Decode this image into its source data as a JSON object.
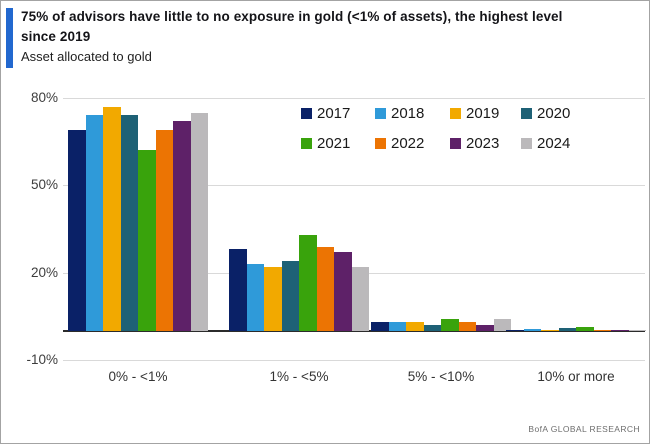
{
  "header": {
    "title": "75% of advisors have little to no exposure in gold (<1% of assets), the highest level since 2019",
    "subtitle": "Asset allocated to gold",
    "accent_color": "#2268cf"
  },
  "chart_data": {
    "type": "bar",
    "title": "Asset allocated to gold",
    "categories": [
      "0% - <1%",
      "1% - <5%",
      "5% - <10%",
      "10% or more"
    ],
    "series": [
      {
        "name": "2017",
        "color": "#0a2167",
        "values": [
          69,
          28,
          3,
          0.5
        ]
      },
      {
        "name": "2018",
        "color": "#2f9ad9",
        "values": [
          74,
          23,
          3,
          0.7
        ]
      },
      {
        "name": "2019",
        "color": "#f2a900",
        "values": [
          77,
          22,
          3,
          0.3
        ]
      },
      {
        "name": "2020",
        "color": "#1e6176",
        "values": [
          74,
          24,
          2,
          1
        ]
      },
      {
        "name": "2021",
        "color": "#39a30c",
        "values": [
          62,
          33,
          4,
          1.5
        ]
      },
      {
        "name": "2022",
        "color": "#ec7403",
        "values": [
          69,
          29,
          3,
          0.3
        ]
      },
      {
        "name": "2023",
        "color": "#5e2168",
        "values": [
          72,
          27,
          2,
          0.5
        ]
      },
      {
        "name": "2024",
        "color": "#bbb9bb",
        "values": [
          75,
          22,
          4,
          0.5
        ]
      }
    ],
    "ylabel": "",
    "xlabel": "",
    "ylim": [
      -10,
      80
    ],
    "y_ticks": [
      80,
      50,
      20,
      -10
    ],
    "y_tick_labels": [
      "80%",
      "50%",
      "20%",
      "-10%"
    ],
    "grid": "horizontal",
    "legend_position": "top-right",
    "legend_rows": 2
  },
  "footer": {
    "source_label": "BofA GLOBAL RESEARCH"
  }
}
